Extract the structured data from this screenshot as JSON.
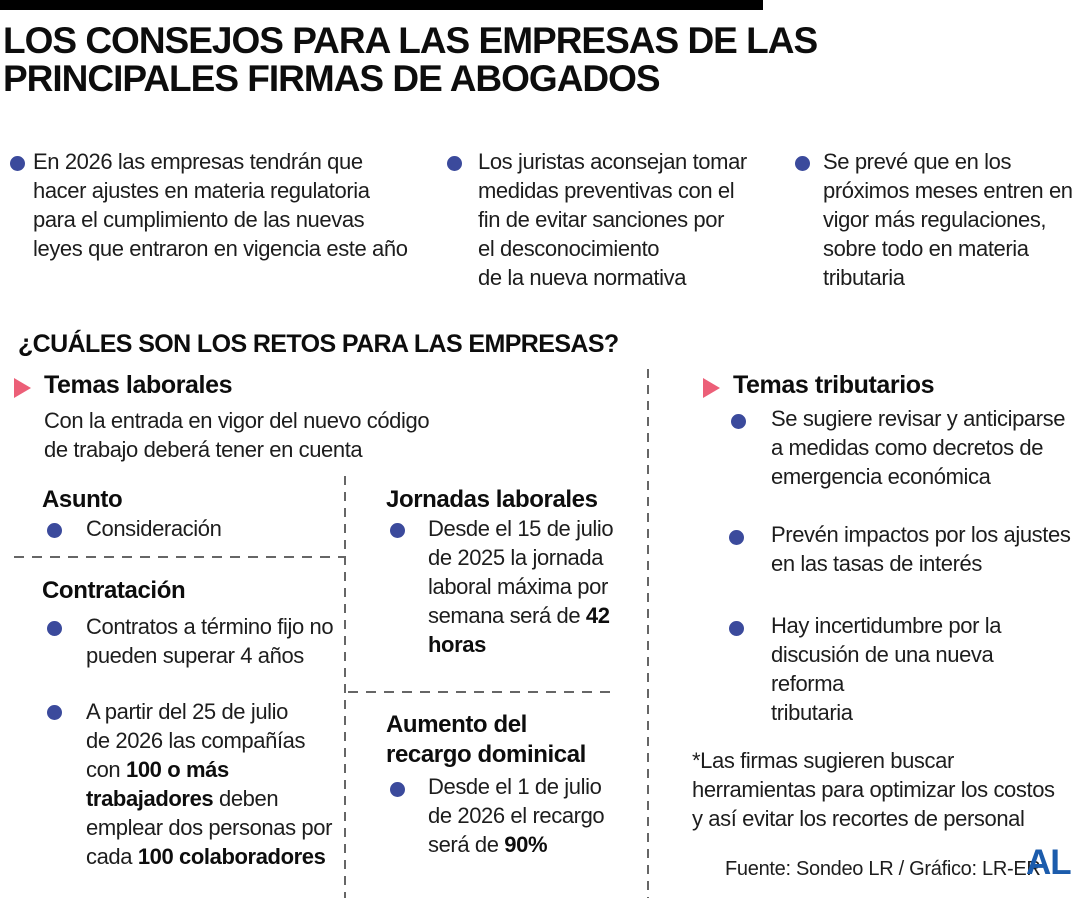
{
  "colors": {
    "navy_bullet": "#3b4a9c",
    "pink_triangle": "#ec5f78",
    "logo_blue": "#1c5cac",
    "top_bar": "#000000"
  },
  "header": {
    "title": [
      "LOS CONSEJOS PARA LAS EMPRESAS DE LAS",
      "PRINCIPALES FIRMAS DE ABOGADOS"
    ]
  },
  "intro": {
    "bullets": [
      {
        "lines": [
          "En 2026 las empresas tendrán que",
          "hacer ajustes en materia regulatoria",
          "para el cumplimiento de las nuevas",
          "leyes que entraron en vigencia este año"
        ]
      },
      {
        "lines": [
          "Los juristas aconsejan tomar",
          "medidas preventivas con el",
          "fin de evitar sanciones por",
          "el desconocimiento",
          "de la nueva normativa"
        ]
      },
      {
        "lines": [
          "Se prevé que en los",
          "próximos meses entren en",
          "vigor más regulaciones,",
          "sobre todo en materia",
          "tributaria"
        ]
      }
    ]
  },
  "question": "¿CUÁLES SON LOS RETOS PARA LAS EMPRESAS?",
  "labor": {
    "title": "Temas laborales",
    "subtitle": [
      "Con la entrada en vigor del nuevo código",
      "de trabajo deberá tener en cuenta"
    ],
    "asunto_heading": "Asunto",
    "asunto_bullet": "Consideración",
    "contratacion_heading": "Contratación",
    "contratacion_bullet1": [
      "Contratos a término fijo no",
      "pueden superar 4 años"
    ],
    "contratacion_bullet2": [
      {
        "t": "A partir del 25 de julio\nde 2026 las compañías\ncon ",
        "b": false
      },
      {
        "t": "100 o más\ntrabajadores",
        "b": true
      },
      {
        "t": " deben\nemplear dos personas por\ncada ",
        "b": false
      },
      {
        "t": "100 colaboradores",
        "b": true
      }
    ],
    "jornadas_heading": "Jornadas laborales",
    "jornadas_bullet": [
      {
        "t": "Desde el 15 de julio\nde 2025 la jornada\nlaboral máxima por\nsemana será de ",
        "b": false
      },
      {
        "t": "42\nhoras",
        "b": true
      }
    ],
    "recargo_heading": [
      "Aumento del",
      "recargo dominical"
    ],
    "recargo_bullet": [
      {
        "t": "Desde el 1 de julio\nde 2026 el recargo\nserá de ",
        "b": false
      },
      {
        "t": "90%",
        "b": true
      }
    ]
  },
  "tax": {
    "title": "Temas tributarios",
    "bullets": [
      {
        "lines": [
          "Se sugiere revisar y anticiparse",
          "a medidas como decretos de",
          "emergencia económica"
        ]
      },
      {
        "lines": [
          "Prevén impactos por los ajustes",
          "en las tasas de interés"
        ]
      },
      {
        "lines": [
          "Hay incertidumbre por la",
          "discusión de una nueva reforma",
          "tributaria"
        ]
      }
    ],
    "note": [
      "*Las firmas sugieren buscar",
      "herramientas para optimizar los costos",
      "y así evitar los recortes de personal"
    ]
  },
  "footer": {
    "source": "Fuente: Sondeo LR / Gráfico: LR-ER",
    "logo": "AL"
  }
}
